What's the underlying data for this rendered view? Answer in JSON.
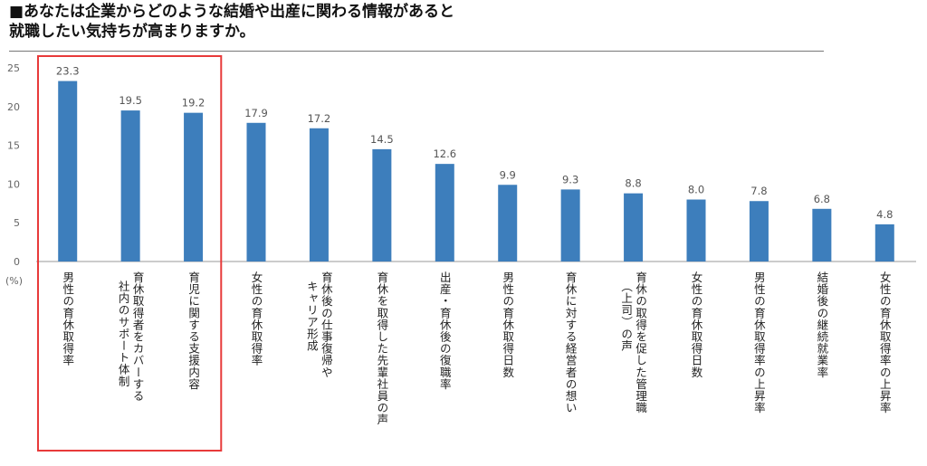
{
  "title": {
    "line1": "■あなたは企業からどのような結婚や出産に関わる情報があると",
    "line2": "就職したい気持ちが高まりますか。"
  },
  "colors": {
    "bar": "#3d7ebc",
    "highlight_box": "#e83a3a",
    "axis": "#999999"
  },
  "chart_data": {
    "type": "bar",
    "unit_label": "(%)",
    "ylim": [
      0,
      25
    ],
    "yticks": [
      "0",
      "5",
      "10",
      "15",
      "20",
      "25"
    ],
    "grid": false,
    "categories": [
      "男性の育休取得率",
      "育休取得者をカバーする社内のサポート体制",
      "育児に関する支援内容",
      "女性の育休取得率",
      "育休後の仕事復帰やキャリア形成",
      "育休を取得した先輩社員の声",
      "出産・育休後の復職率",
      "男性の育休取得日数",
      "育休に対する経営者の想い",
      "育休の取得を促した管理職（上司）の声",
      "女性の育休取得日数",
      "男性の育休取得率の上昇率",
      "結婚後の継続就業率",
      "女性の育休取得率の上昇率"
    ],
    "category_columns": [
      [
        "男性の育休取得率"
      ],
      [
        "育休取得者をカバーする",
        "社内のサポート体制"
      ],
      [
        "育児に関する支援内容"
      ],
      [
        "女性の育休取得率"
      ],
      [
        "育休後の仕事復帰や",
        "キャリア形成"
      ],
      [
        "育休を取得した先輩社員の声"
      ],
      [
        "出産・育休後の復職率"
      ],
      [
        "男性の育休取得日数"
      ],
      [
        "育休に対する経営者の想い"
      ],
      [
        "育休の取得を促した管理職",
        "（上司）の声"
      ],
      [
        "女性の育休取得日数"
      ],
      [
        "男性の育休取得率の上昇率"
      ],
      [
        "結婚後の継続就業率"
      ],
      [
        "女性の育休取得率の上昇率"
      ]
    ],
    "values": [
      23.3,
      19.5,
      19.2,
      17.9,
      17.2,
      14.5,
      12.6,
      9.9,
      9.3,
      8.8,
      8.0,
      7.8,
      6.8,
      4.8
    ],
    "value_labels": [
      "23.3",
      "19.5",
      "19.2",
      "17.9",
      "17.2",
      "14.5",
      "12.6",
      "9.9",
      "9.3",
      "8.8",
      "8.0",
      "7.8",
      "6.8",
      "4.8"
    ],
    "highlighted_categories": [
      0,
      1,
      2
    ]
  }
}
